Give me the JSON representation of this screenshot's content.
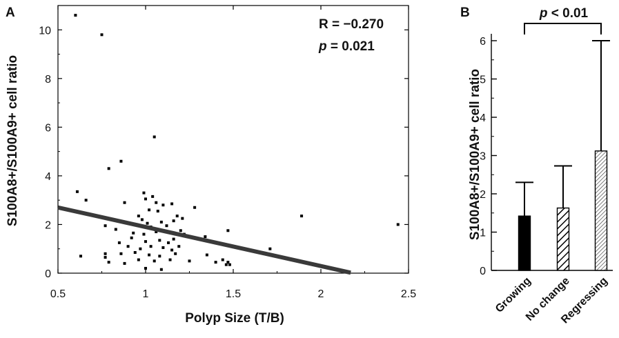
{
  "chart_data": [
    {
      "panel": "A",
      "type": "scatter",
      "xlabel": "Polyp Size (T/B)",
      "ylabel": "S100A8+/S100A9+ cell ratio",
      "xlim": [
        0.5,
        2.5
      ],
      "ylim": [
        0,
        11
      ],
      "xticks": [
        "0.5",
        "1",
        "1.5",
        "2",
        "2.5"
      ],
      "yticks": [
        "0",
        "2",
        "4",
        "6",
        "8",
        "10"
      ],
      "annotations": {
        "r_text": "R = −0.270",
        "p_label": "p",
        "p_value": " = 0.021"
      },
      "trend_line": {
        "x": [
          0.5,
          2.17
        ],
        "y": [
          2.7,
          0.02
        ]
      },
      "points": [
        {
          "x": 0.6,
          "y": 10.6
        },
        {
          "x": 0.75,
          "y": 9.8
        },
        {
          "x": 1.05,
          "y": 5.6
        },
        {
          "x": 0.86,
          "y": 4.6
        },
        {
          "x": 0.79,
          "y": 4.3
        },
        {
          "x": 0.61,
          "y": 3.35
        },
        {
          "x": 0.66,
          "y": 3.0
        },
        {
          "x": 0.99,
          "y": 3.3
        },
        {
          "x": 1.04,
          "y": 3.15
        },
        {
          "x": 1.0,
          "y": 3.05
        },
        {
          "x": 1.06,
          "y": 2.9
        },
        {
          "x": 1.1,
          "y": 2.8
        },
        {
          "x": 1.15,
          "y": 2.85
        },
        {
          "x": 1.28,
          "y": 2.7
        },
        {
          "x": 0.88,
          "y": 2.9
        },
        {
          "x": 1.02,
          "y": 2.6
        },
        {
          "x": 1.07,
          "y": 2.55
        },
        {
          "x": 1.18,
          "y": 2.35
        },
        {
          "x": 1.21,
          "y": 2.25
        },
        {
          "x": 0.96,
          "y": 2.35
        },
        {
          "x": 0.98,
          "y": 2.2
        },
        {
          "x": 1.01,
          "y": 2.05
        },
        {
          "x": 1.09,
          "y": 2.1
        },
        {
          "x": 1.16,
          "y": 2.15
        },
        {
          "x": 0.95,
          "y": 2.0
        },
        {
          "x": 1.03,
          "y": 1.9
        },
        {
          "x": 1.12,
          "y": 1.95
        },
        {
          "x": 0.77,
          "y": 1.95
        },
        {
          "x": 0.83,
          "y": 1.8
        },
        {
          "x": 0.93,
          "y": 1.65
        },
        {
          "x": 0.99,
          "y": 1.6
        },
        {
          "x": 1.06,
          "y": 1.7
        },
        {
          "x": 1.2,
          "y": 1.75
        },
        {
          "x": 1.22,
          "y": 1.6
        },
        {
          "x": 1.34,
          "y": 1.5
        },
        {
          "x": 1.47,
          "y": 1.75
        },
        {
          "x": 0.92,
          "y": 1.45
        },
        {
          "x": 1.0,
          "y": 1.3
        },
        {
          "x": 1.08,
          "y": 1.35
        },
        {
          "x": 1.13,
          "y": 1.25
        },
        {
          "x": 1.16,
          "y": 1.4
        },
        {
          "x": 0.85,
          "y": 1.25
        },
        {
          "x": 0.9,
          "y": 1.1
        },
        {
          "x": 0.97,
          "y": 1.0
        },
        {
          "x": 1.03,
          "y": 1.1
        },
        {
          "x": 1.1,
          "y": 1.05
        },
        {
          "x": 1.15,
          "y": 0.95
        },
        {
          "x": 1.19,
          "y": 1.1
        },
        {
          "x": 1.71,
          "y": 1.0
        },
        {
          "x": 0.86,
          "y": 0.8
        },
        {
          "x": 0.94,
          "y": 0.85
        },
        {
          "x": 1.02,
          "y": 0.75
        },
        {
          "x": 1.08,
          "y": 0.7
        },
        {
          "x": 1.17,
          "y": 0.8
        },
        {
          "x": 1.35,
          "y": 0.75
        },
        {
          "x": 0.77,
          "y": 0.8
        },
        {
          "x": 0.77,
          "y": 0.65
        },
        {
          "x": 0.63,
          "y": 0.7
        },
        {
          "x": 0.96,
          "y": 0.55
        },
        {
          "x": 1.05,
          "y": 0.5
        },
        {
          "x": 1.14,
          "y": 0.55
        },
        {
          "x": 1.25,
          "y": 0.5
        },
        {
          "x": 1.4,
          "y": 0.45
        },
        {
          "x": 1.44,
          "y": 0.55
        },
        {
          "x": 0.79,
          "y": 0.45
        },
        {
          "x": 0.88,
          "y": 0.4
        },
        {
          "x": 1.47,
          "y": 0.45
        },
        {
          "x": 1.48,
          "y": 0.35
        },
        {
          "x": 1.46,
          "y": 0.35
        },
        {
          "x": 1.0,
          "y": 0.2
        },
        {
          "x": 1.09,
          "y": 0.15
        },
        {
          "x": 1.89,
          "y": 2.35
        },
        {
          "x": 2.44,
          "y": 2.0
        }
      ]
    },
    {
      "panel": "B",
      "type": "bar",
      "ylabel": "S100A8+/S100A9+ cell ratio",
      "ylim": [
        0,
        6
      ],
      "yticks": [
        "0",
        "1",
        "2",
        "3",
        "4",
        "5",
        "6"
      ],
      "categories": [
        "Growing",
        "No change",
        "Regressing"
      ],
      "values": [
        1.42,
        1.63,
        3.12
      ],
      "error_upper": [
        2.3,
        2.73,
        6.0
      ],
      "fills": [
        "solid",
        "hatched",
        "dense-hatched"
      ],
      "significance": {
        "p_label": "p",
        "p_value": " < 0.01"
      }
    }
  ],
  "colors": {
    "ink": "#000000",
    "trend": "#3a3a3a",
    "background": "#ffffff"
  }
}
